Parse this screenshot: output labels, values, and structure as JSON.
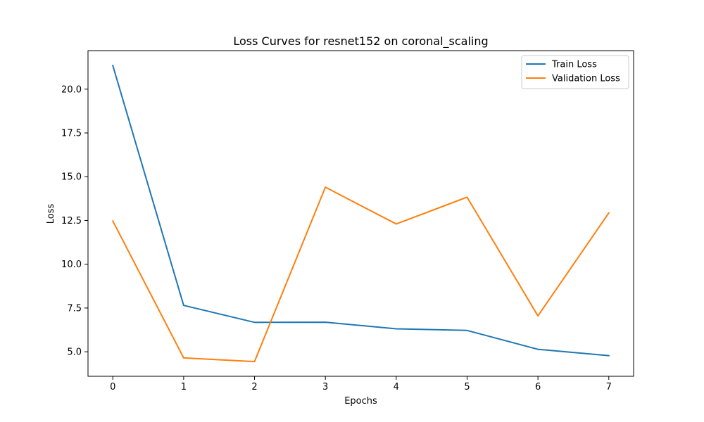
{
  "chart_data": {
    "type": "line",
    "title": "Loss Curves for resnet152 on coronal_scaling",
    "xlabel": "Epochs",
    "ylabel": "Loss",
    "x": [
      0,
      1,
      2,
      3,
      4,
      5,
      6,
      7
    ],
    "xlim": [
      -0.35,
      7.35
    ],
    "ylim": [
      3.6,
      22.2
    ],
    "xticks": [
      0,
      1,
      2,
      3,
      4,
      5,
      6,
      7
    ],
    "yticks": [
      5.0,
      7.5,
      10.0,
      12.5,
      15.0,
      17.5,
      20.0
    ],
    "ytick_labels": [
      "5.0",
      "7.5",
      "10.0",
      "12.5",
      "15.0",
      "17.5",
      "20.0"
    ],
    "legend_position": "top-right",
    "grid": false,
    "series": [
      {
        "name": "Train Loss",
        "color": "#1f77b4",
        "values": [
          21.35,
          7.65,
          6.68,
          6.69,
          6.31,
          6.22,
          5.14,
          4.78
        ]
      },
      {
        "name": "Validation Loss",
        "color": "#ff7f0e",
        "values": [
          12.47,
          4.65,
          4.44,
          14.4,
          12.3,
          13.83,
          7.05,
          12.93
        ]
      }
    ]
  }
}
